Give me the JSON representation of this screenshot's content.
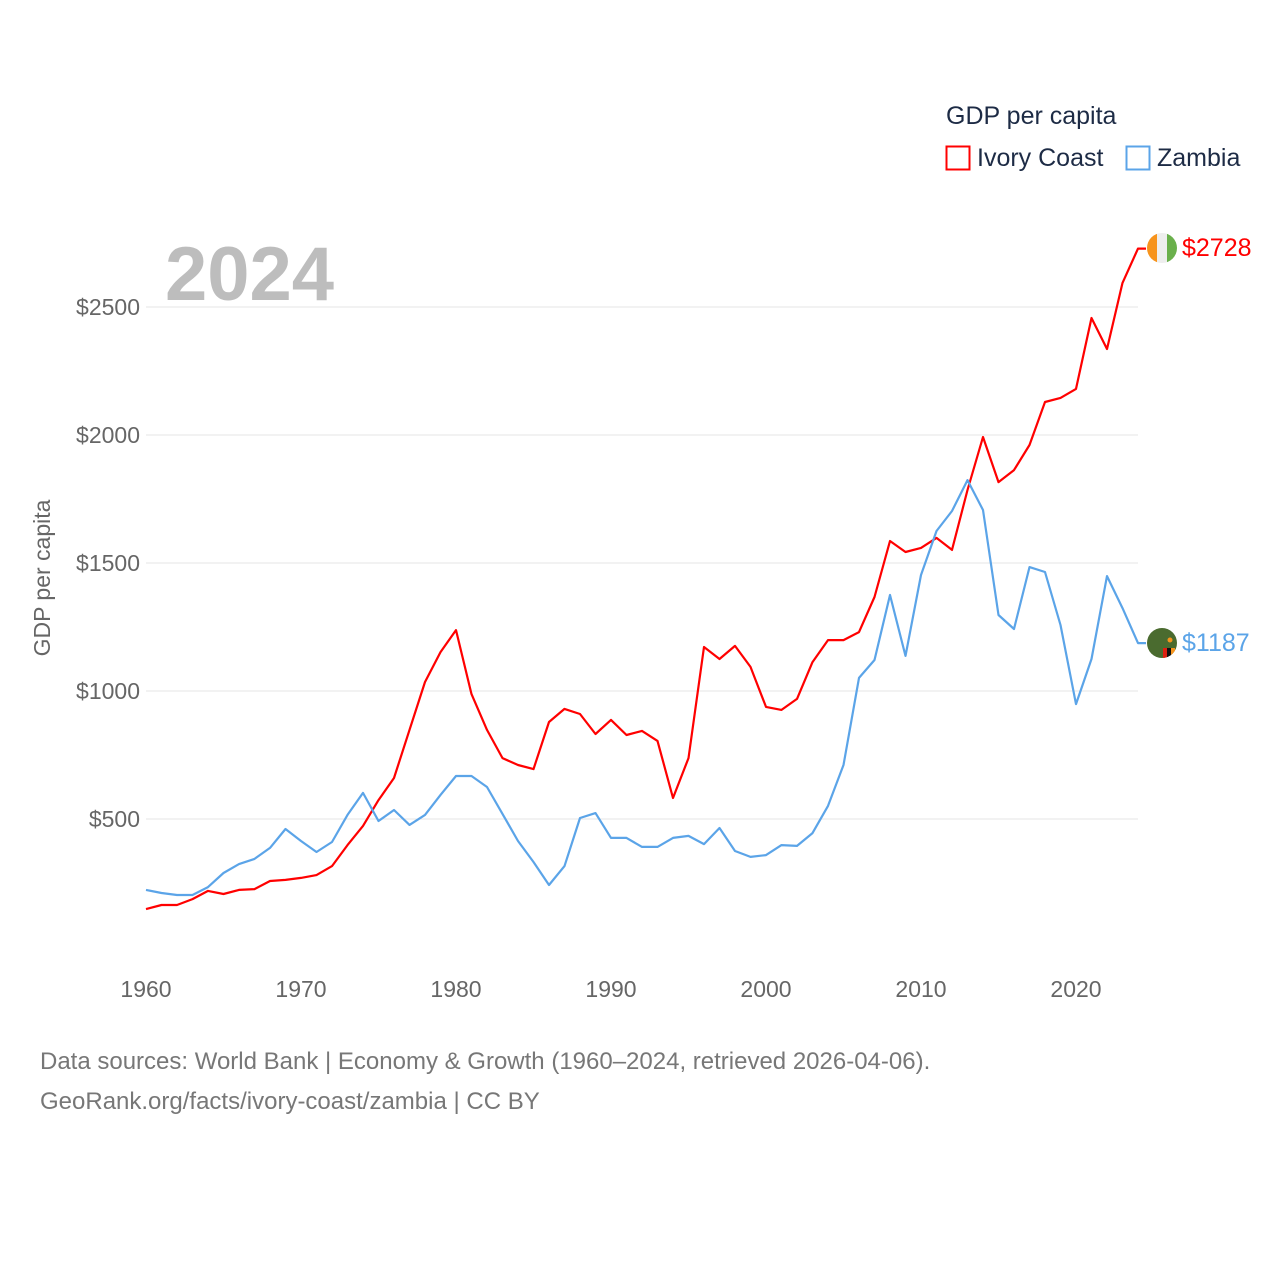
{
  "chart_data": {
    "type": "line",
    "title": "GDP per capita",
    "ylabel": "GDP per capita",
    "xlabel": "",
    "year_label": "2024",
    "xlim": [
      1960,
      2024
    ],
    "ylim": [
      0,
      2800
    ],
    "x_ticks": [
      1960,
      1970,
      1980,
      1990,
      2000,
      2010,
      2020
    ],
    "y_ticks": [
      500,
      1000,
      1500,
      2000,
      2500
    ],
    "y_tick_labels": [
      "$500",
      "$1000",
      "$1500",
      "$2000",
      "$2500"
    ],
    "x_tick_labels": [
      "1960",
      "1970",
      "1980",
      "1990",
      "2000",
      "2010",
      "2020"
    ],
    "grid": true,
    "legend_position": "top-right",
    "x": [
      1960,
      1961,
      1962,
      1963,
      1964,
      1965,
      1966,
      1967,
      1968,
      1969,
      1970,
      1971,
      1972,
      1973,
      1974,
      1975,
      1976,
      1977,
      1978,
      1979,
      1980,
      1981,
      1982,
      1983,
      1984,
      1985,
      1986,
      1987,
      1988,
      1989,
      1990,
      1991,
      1992,
      1993,
      1994,
      1995,
      1996,
      1997,
      1998,
      1999,
      2000,
      2001,
      2002,
      2003,
      2004,
      2005,
      2006,
      2007,
      2008,
      2009,
      2010,
      2011,
      2012,
      2013,
      2014,
      2015,
      2016,
      2017,
      2018,
      2019,
      2020,
      2021,
      2022,
      2023,
      2024
    ],
    "series": [
      {
        "name": "Ivory Coast",
        "color": "#ff0000",
        "end_label": "$2728",
        "flag": "ivory-coast",
        "values": [
          148,
          164,
          164,
          187,
          219,
          207,
          223,
          226,
          258,
          262,
          270,
          281,
          316,
          398,
          473,
          574,
          660,
          848,
          1035,
          1152,
          1238,
          988,
          848,
          738,
          711,
          695,
          879,
          930,
          910,
          832,
          887,
          828,
          844,
          805,
          582,
          738,
          1172,
          1125,
          1176,
          1094,
          938,
          926,
          969,
          1113,
          1199,
          1199,
          1230,
          1367,
          1586,
          1543,
          1559,
          1598,
          1551,
          1785,
          1992,
          1816,
          1863,
          1961,
          2129,
          2145,
          2180,
          2457,
          2336,
          2594,
          2728
        ]
      },
      {
        "name": "Zambia",
        "color": "#5ba4e8",
        "end_label": "$1187",
        "flag": "zambia",
        "values": [
          223,
          211,
          203,
          203,
          234,
          289,
          324,
          344,
          387,
          461,
          414,
          371,
          410,
          516,
          602,
          492,
          535,
          477,
          516,
          594,
          668,
          668,
          625,
          520,
          414,
          332,
          242,
          316,
          504,
          523,
          426,
          426,
          391,
          391,
          426,
          434,
          402,
          465,
          375,
          352,
          359,
          398,
          395,
          445,
          551,
          711,
          1051,
          1121,
          1375,
          1137,
          1453,
          1625,
          1703,
          1824,
          1707,
          1297,
          1242,
          1484,
          1465,
          1258,
          949,
          1125,
          1449,
          1324,
          1187
        ]
      }
    ]
  },
  "footer": {
    "line1": "Data sources: World Bank | Economy & Growth (1960–2024, retrieved 2026-04-06).",
    "line2": "GeoRank.org/facts/ivory-coast/zambia | CC BY"
  }
}
